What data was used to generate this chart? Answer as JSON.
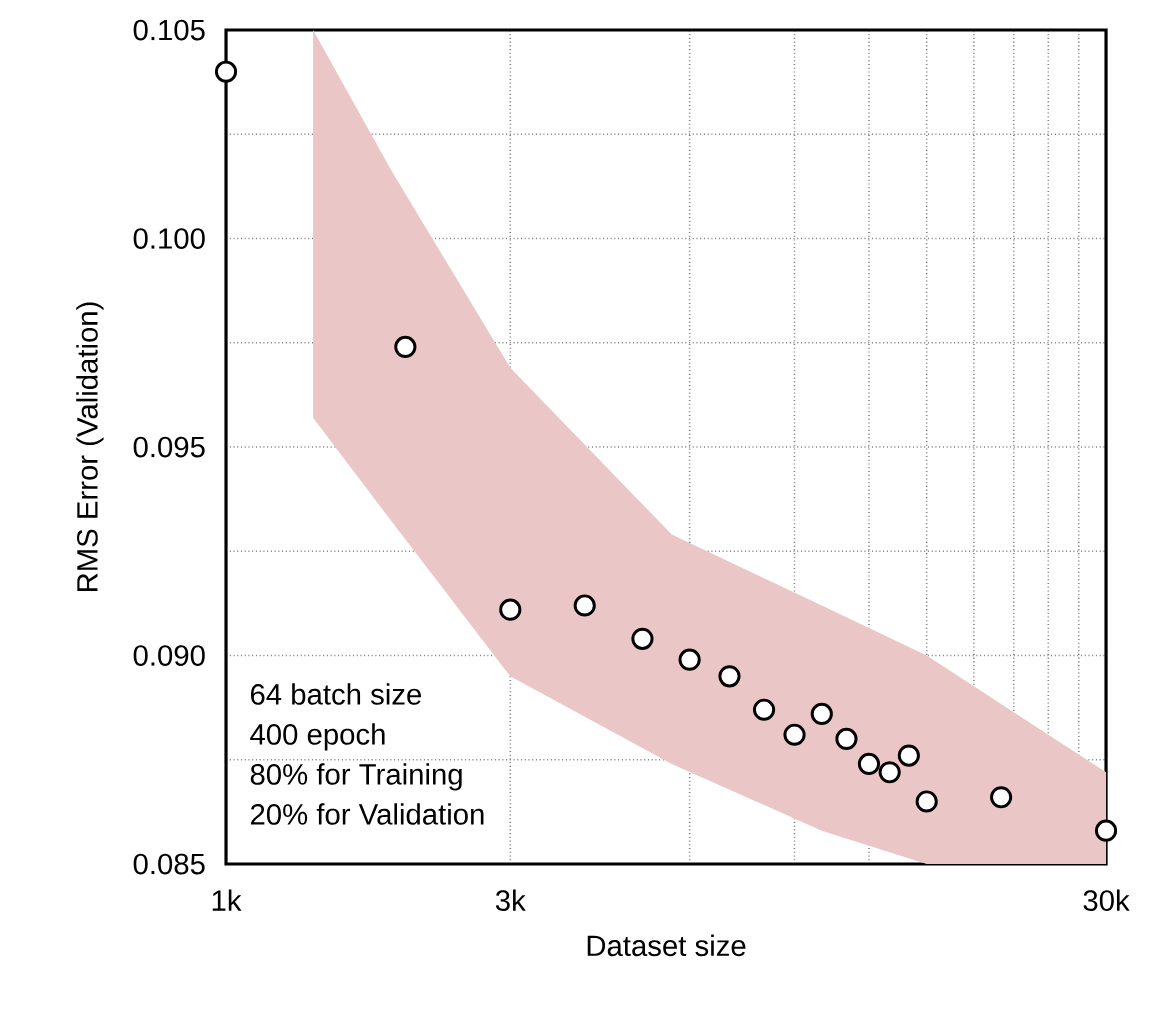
{
  "chart_data": {
    "type": "scatter",
    "xlabel": "Dataset size",
    "ylabel": "RMS Error (Validation)",
    "log": "x",
    "grid": true,
    "marker": "circle",
    "xlim": [
      1000,
      30000
    ],
    "ylim": [
      0.085,
      0.105
    ],
    "xticks": [
      {
        "value": 1000,
        "label": "1k"
      },
      {
        "value": 3000,
        "label": "3k"
      },
      {
        "value": 6000,
        "label": null
      },
      {
        "value": 9000,
        "label": null
      },
      {
        "value": 12000,
        "label": null
      },
      {
        "value": 15000,
        "label": null
      },
      {
        "value": 18000,
        "label": null
      },
      {
        "value": 21000,
        "label": null
      },
      {
        "value": 24000,
        "label": null
      },
      {
        "value": 27000,
        "label": null
      },
      {
        "value": 30000,
        "label": "30k"
      }
    ],
    "yticks": [
      {
        "value": 0.085,
        "label": "0.085"
      },
      {
        "value": 0.0875,
        "label": null
      },
      {
        "value": 0.09,
        "label": "0.090"
      },
      {
        "value": 0.0925,
        "label": null
      },
      {
        "value": 0.095,
        "label": "0.095"
      },
      {
        "value": 0.0975,
        "label": null
      },
      {
        "value": 0.1,
        "label": "0.100"
      },
      {
        "value": 0.1025,
        "label": null
      },
      {
        "value": 0.105,
        "label": "0.105"
      }
    ],
    "annotations": [
      "64 batch size",
      "400 epoch",
      "80% for Training",
      "20% for Validation"
    ],
    "series": [
      {
        "type": "area",
        "color": "#ebc6c6",
        "x": [
          1400,
          1900,
          3000,
          5600,
          10000,
          15000,
          30000
        ],
        "values": [
          null,
          null,
          null,
          null,
          null,
          null,
          null
        ],
        "lower": [
          0.0957,
          0.0932,
          0.0895,
          0.0874,
          0.0858,
          0.085,
          0.085
        ],
        "upper": [
          0.105,
          0.1016,
          0.0969,
          0.0929,
          0.0912,
          0.09,
          0.0872
        ]
      },
      {
        "color": "#ffffff",
        "x": [
          1000,
          2000,
          3000,
          4000,
          5000,
          6000,
          7000,
          8000,
          9000,
          10000,
          11000,
          12000,
          13000,
          14000,
          15000,
          20000,
          30000
        ],
        "values": [
          0.104,
          0.0974,
          0.0911,
          0.0912,
          0.0904,
          0.0899,
          0.0895,
          0.0887,
          0.0881,
          0.0886,
          0.088,
          0.0874,
          0.0872,
          0.0876,
          0.0865,
          0.0866,
          0.0858
        ]
      }
    ]
  }
}
